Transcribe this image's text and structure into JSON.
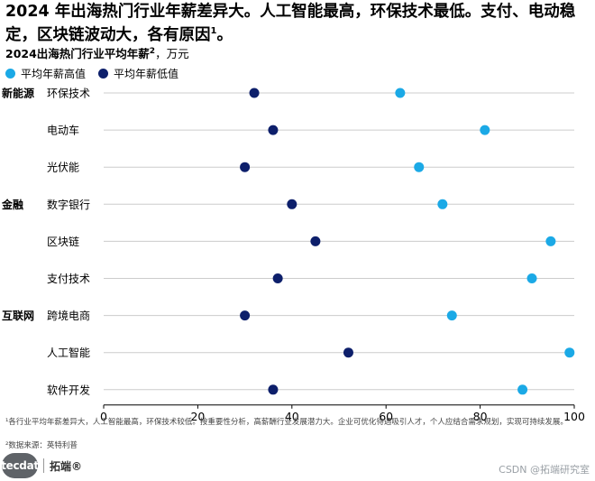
{
  "title": "2024 年出海热门行业年薪差异大。人工智能最高，环保技术最低。支付、电动稳定，区块链波动大，各有原因",
  "title_sup": "1",
  "subtitle": "2024出海热门行业平均年薪",
  "subtitle_sup": "2",
  "subtitle_unit": "，万元",
  "footnote": "¹各行业平均年薪差异大，人工智能最高，环保技术较低。按重要性分析，高薪酬行业发展潜力大。企业可优化待遇吸引人才，个人应结合需求规划，实现可持续发展。",
  "source": "²数据来源：英特利普",
  "logo": {
    "badge": "tecdat",
    "name": "拓端®"
  },
  "watermark": "CSDN @拓端研究室",
  "chart_data": {
    "type": "scatter",
    "style": "dot-plot",
    "title": "2024出海热门行业平均年薪",
    "unit": "万元",
    "xlim": [
      0,
      100
    ],
    "xticks": [
      0,
      20,
      40,
      60,
      80,
      100
    ],
    "grid": true,
    "legend_position": "top-left",
    "colors": {
      "high": "#1ba9e6",
      "low": "#0d1f6b",
      "grid": "#cccccc"
    },
    "groups": [
      {
        "label": "新能源",
        "first_row": 0
      },
      {
        "label": "金融",
        "first_row": 3
      },
      {
        "label": "互联网",
        "first_row": 6
      }
    ],
    "categories": [
      "环保技术",
      "电动车",
      "光伏能",
      "数字银行",
      "区块链",
      "支付技术",
      "跨境电商",
      "人工智能",
      "软件开发"
    ],
    "series": [
      {
        "name": "平均年薪高值",
        "key": "high",
        "values": [
          63,
          81,
          67,
          72,
          95,
          91,
          74,
          99,
          89
        ]
      },
      {
        "name": "平均年薪低值",
        "key": "low",
        "values": [
          32,
          36,
          30,
          40,
          45,
          37,
          30,
          52,
          36
        ]
      }
    ]
  }
}
